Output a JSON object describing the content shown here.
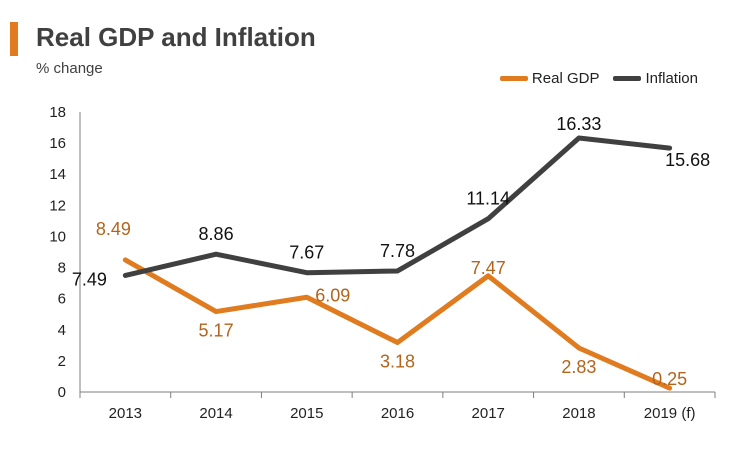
{
  "header": {
    "title": "Real GDP and Inflation",
    "subtitle": "% change"
  },
  "colors": {
    "accent": "#e07b1f",
    "real_gdp": "#e07b1f",
    "inflation": "#404040",
    "real_gdp_label": "#b3641c",
    "inflation_label": "#111111"
  },
  "chart_data": {
    "type": "line",
    "categories": [
      "2013",
      "2014",
      "2015",
      "2016",
      "2017",
      "2018",
      "2019 (f)"
    ],
    "series": [
      {
        "name": "Real GDP",
        "values": [
          8.49,
          5.17,
          6.09,
          3.18,
          7.47,
          2.83,
          0.25
        ]
      },
      {
        "name": "Inflation",
        "values": [
          7.49,
          8.86,
          7.67,
          7.78,
          11.14,
          16.33,
          15.68
        ]
      }
    ],
    "data_labels": {
      "Real GDP": [
        "8.49",
        "5.17",
        "6.09",
        "3.18",
        "7.47",
        "2.83",
        "0.25"
      ],
      "Inflation": [
        "7.49",
        "8.86",
        "7.67",
        "7.78",
        "11.14",
        "16.33",
        "15.68"
      ]
    },
    "yticks": [
      "0",
      "2",
      "4",
      "6",
      "8",
      "10",
      "12",
      "14",
      "16",
      "18"
    ],
    "ylim": [
      0,
      18
    ],
    "grid": false,
    "legend_position": "top-right"
  }
}
